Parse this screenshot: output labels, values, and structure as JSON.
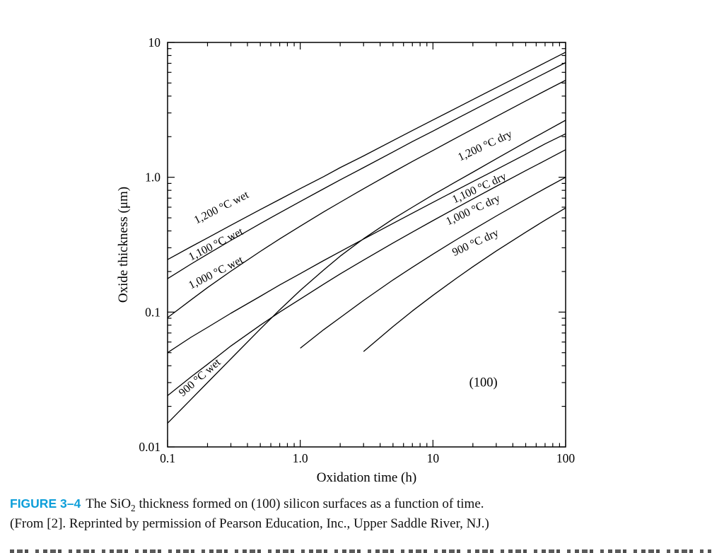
{
  "figure": {
    "caption_label": "FIGURE 3–4",
    "caption_label_color": "#0c9ed9",
    "caption_pre": "The SiO",
    "caption_sub": "2",
    "caption_post": " thickness formed on (100) silicon surfaces as a function of time.",
    "caption_line2": "(From [2]. Reprinted by permission of Pearson Education, Inc., Upper Saddle River, NJ.)"
  },
  "chart_data": {
    "type": "line",
    "title": "",
    "xlabel": "Oxidation time (h)",
    "ylabel": "Oxide thickness (μm)",
    "x_scale": "log",
    "y_scale": "log",
    "xlim": [
      0.1,
      100
    ],
    "ylim": [
      0.01,
      10
    ],
    "grid": false,
    "legend_position": "inline-curve-labels",
    "line_color": "#000000",
    "x_ticks": [
      {
        "value": 0.1,
        "label": "0.1"
      },
      {
        "value": 1,
        "label": "1.0"
      },
      {
        "value": 10,
        "label": "10"
      },
      {
        "value": 100,
        "label": "100"
      }
    ],
    "y_ticks": [
      {
        "value": 0.01,
        "label": "0.01"
      },
      {
        "value": 0.1,
        "label": "0.1"
      },
      {
        "value": 1,
        "label": "1.0"
      },
      {
        "value": 10,
        "label": "10"
      }
    ],
    "annotation": {
      "text": "(100)",
      "x": 24,
      "y": 0.028
    },
    "series": [
      {
        "id": "1200C-wet",
        "name": "1,200 °C wet",
        "points": [
          [
            0.1,
            0.245
          ],
          [
            0.15,
            0.305
          ],
          [
            0.2,
            0.355
          ],
          [
            0.3,
            0.44
          ],
          [
            0.5,
            0.576
          ],
          [
            0.7,
            0.685
          ],
          [
            1,
            0.824
          ],
          [
            1.5,
            1.01
          ],
          [
            2,
            1.18
          ],
          [
            3,
            1.44
          ],
          [
            5,
            1.87
          ],
          [
            7,
            2.22
          ],
          [
            10,
            2.66
          ],
          [
            15,
            3.26
          ],
          [
            20,
            3.77
          ],
          [
            30,
            4.62
          ],
          [
            50,
            5.97
          ],
          [
            70,
            7.07
          ],
          [
            100,
            8.46
          ]
        ],
        "label": {
          "x": 0.165,
          "y": 0.45,
          "rotation": -27
        }
      },
      {
        "id": "1100C-wet",
        "name": "1,100 °C wet",
        "points": [
          [
            0.1,
            0.177
          ],
          [
            0.15,
            0.227
          ],
          [
            0.2,
            0.269
          ],
          [
            0.3,
            0.34
          ],
          [
            0.5,
            0.453
          ],
          [
            0.7,
            0.545
          ],
          [
            1,
            0.661
          ],
          [
            1.5,
            0.821
          ],
          [
            2,
            0.957
          ],
          [
            3,
            1.18
          ],
          [
            5,
            1.54
          ],
          [
            7,
            1.84
          ],
          [
            10,
            2.2
          ],
          [
            15,
            2.71
          ],
          [
            20,
            3.14
          ],
          [
            30,
            3.86
          ],
          [
            50,
            5.0
          ],
          [
            70,
            5.92
          ],
          [
            100,
            7.09
          ]
        ],
        "label": {
          "x": 0.15,
          "y": 0.24,
          "rotation": -27
        }
      },
      {
        "id": "1000C-wet",
        "name": "1,000 °C wet",
        "points": [
          [
            0.1,
            0.091
          ],
          [
            0.15,
            0.123
          ],
          [
            0.2,
            0.152
          ],
          [
            0.3,
            0.201
          ],
          [
            0.5,
            0.282
          ],
          [
            0.7,
            0.349
          ],
          [
            1,
            0.434
          ],
          [
            1.5,
            0.553
          ],
          [
            2,
            0.653
          ],
          [
            3,
            0.822
          ],
          [
            5,
            1.09
          ],
          [
            7,
            1.31
          ],
          [
            10,
            1.58
          ],
          [
            15,
            1.96
          ],
          [
            20,
            2.28
          ],
          [
            30,
            2.82
          ],
          [
            50,
            3.68
          ],
          [
            70,
            4.37
          ],
          [
            100,
            5.24
          ]
        ],
        "label": {
          "x": 0.15,
          "y": 0.148,
          "rotation": -27
        }
      },
      {
        "id": "900C-wet",
        "name": "900 °C wet",
        "points": [
          [
            0.1,
            0.015
          ],
          [
            0.15,
            0.0225
          ],
          [
            0.2,
            0.03
          ],
          [
            0.3,
            0.045
          ],
          [
            0.5,
            0.075
          ],
          [
            0.7,
            0.104
          ],
          [
            1,
            0.145
          ],
          [
            1.5,
            0.205
          ],
          [
            2,
            0.26
          ],
          [
            3,
            0.35
          ],
          [
            5,
            0.49
          ],
          [
            7,
            0.6
          ],
          [
            10,
            0.74
          ],
          [
            15,
            0.93
          ],
          [
            20,
            1.09
          ],
          [
            30,
            1.37
          ],
          [
            50,
            1.82
          ],
          [
            70,
            2.18
          ],
          [
            100,
            2.65
          ]
        ],
        "label": {
          "x": 0.13,
          "y": 0.0235,
          "rotation": -41
        }
      },
      {
        "id": "1200C-dry",
        "name": "1,200 °C dry",
        "points": [
          [
            0.1,
            0.05
          ],
          [
            0.15,
            0.065
          ],
          [
            0.2,
            0.077
          ],
          [
            0.3,
            0.098
          ],
          [
            0.5,
            0.131
          ],
          [
            0.7,
            0.159
          ],
          [
            1,
            0.193
          ],
          [
            1.5,
            0.241
          ],
          [
            2,
            0.281
          ],
          [
            3,
            0.348
          ],
          [
            5,
            0.455
          ],
          [
            7,
            0.542
          ],
          [
            10,
            0.651
          ],
          [
            15,
            0.802
          ],
          [
            20,
            0.929
          ],
          [
            30,
            1.14
          ],
          [
            50,
            1.48
          ],
          [
            70,
            1.77
          ],
          [
            100,
            2.1
          ]
        ],
        "label": {
          "x": 16,
          "y": 1.32,
          "rotation": -25
        }
      },
      {
        "id": "1100C-dry",
        "name": "1,100 °C dry",
        "points": [
          [
            0.1,
            0.024
          ],
          [
            0.15,
            0.033
          ],
          [
            0.2,
            0.041
          ],
          [
            0.3,
            0.056
          ],
          [
            0.5,
            0.08
          ],
          [
            0.7,
            0.1
          ],
          [
            1,
            0.125
          ],
          [
            1.5,
            0.161
          ],
          [
            2,
            0.192
          ],
          [
            3,
            0.243
          ],
          [
            5,
            0.325
          ],
          [
            7,
            0.392
          ],
          [
            10,
            0.477
          ],
          [
            15,
            0.593
          ],
          [
            20,
            0.691
          ],
          [
            30,
            0.856
          ],
          [
            50,
            1.12
          ],
          [
            70,
            1.33
          ],
          [
            100,
            1.6
          ]
        ],
        "label": {
          "x": 14.5,
          "y": 0.64,
          "rotation": -25
        }
      },
      {
        "id": "1000C-dry",
        "name": "1,000 °C dry",
        "points": [
          [
            1,
            0.054
          ],
          [
            1.5,
            0.074
          ],
          [
            2,
            0.091
          ],
          [
            3,
            0.122
          ],
          [
            5,
            0.173
          ],
          [
            7,
            0.215
          ],
          [
            10,
            0.269
          ],
          [
            15,
            0.344
          ],
          [
            20,
            0.408
          ],
          [
            30,
            0.516
          ],
          [
            50,
            0.687
          ],
          [
            70,
            0.826
          ],
          [
            100,
            1.0
          ]
        ],
        "label": {
          "x": 13,
          "y": 0.44,
          "rotation": -25
        }
      },
      {
        "id": "900C-dry",
        "name": "900 °C dry",
        "points": [
          [
            3,
            0.051
          ],
          [
            5,
            0.078
          ],
          [
            7,
            0.102
          ],
          [
            10,
            0.133
          ],
          [
            15,
            0.178
          ],
          [
            20,
            0.217
          ],
          [
            30,
            0.284
          ],
          [
            50,
            0.391
          ],
          [
            70,
            0.48
          ],
          [
            100,
            0.592
          ]
        ],
        "label": {
          "x": 14.5,
          "y": 0.26,
          "rotation": -25
        }
      }
    ]
  }
}
